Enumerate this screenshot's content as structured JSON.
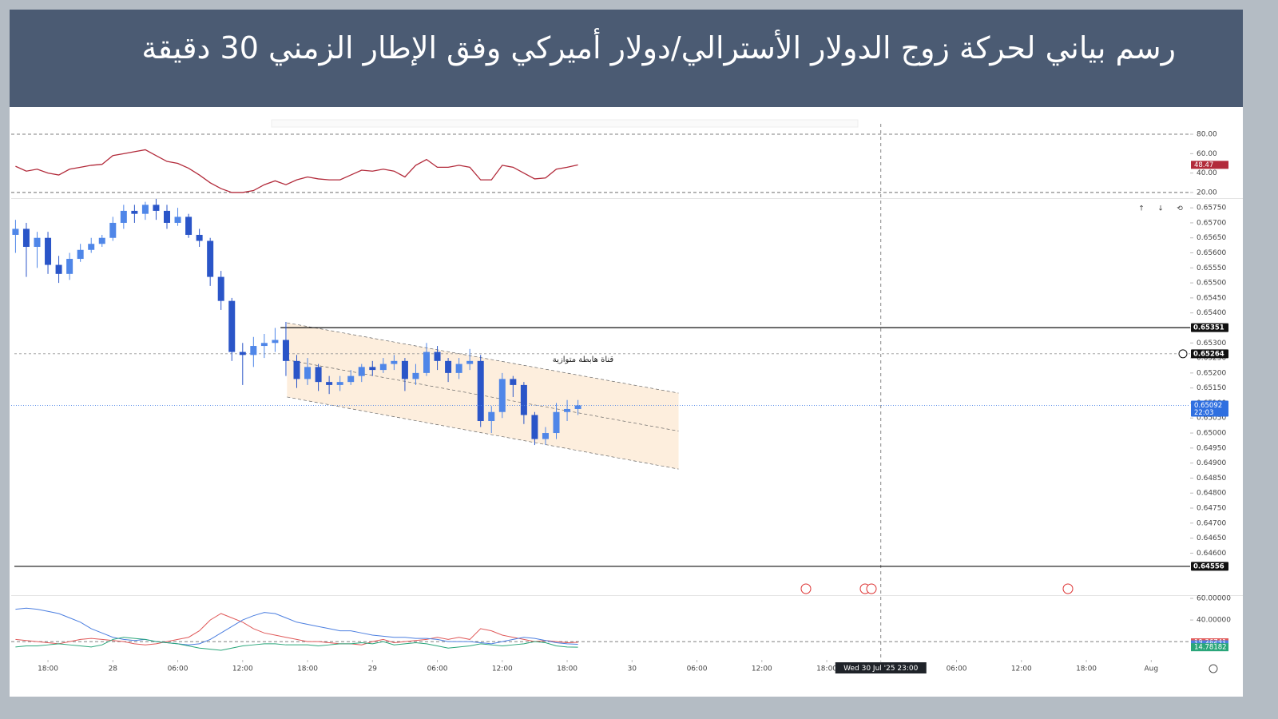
{
  "header": {
    "title": "رسم بياني لحركة زوج الدولار الأسترالي/دولار أميركي وفق الإطار الزمني 30 دقيقة"
  },
  "chart_data": [
    {
      "type": "candlestick",
      "x": [
        -3,
        -2,
        -1,
        0,
        1,
        2,
        3,
        4,
        5,
        6,
        7,
        8,
        9,
        10,
        11,
        12,
        13,
        14,
        15,
        16,
        17,
        18,
        19,
        20,
        21,
        22,
        23,
        24,
        25,
        26,
        27,
        28,
        29,
        30,
        31,
        32,
        33,
        34,
        35,
        36,
        37,
        38,
        39,
        40,
        41,
        42,
        43,
        44,
        45,
        46,
        47,
        48,
        49
      ],
      "open": [
        0.6566,
        0.6568,
        0.6562,
        0.6565,
        0.6556,
        0.6553,
        0.6558,
        0.6561,
        0.6563,
        0.6565,
        0.657,
        0.6574,
        0.6573,
        0.6576,
        0.6574,
        0.657,
        0.6572,
        0.6566,
        0.6564,
        0.6552,
        0.6544,
        0.6527,
        0.6526,
        0.6529,
        0.653,
        0.6531,
        0.6524,
        0.6518,
        0.6522,
        0.6517,
        0.6516,
        0.6517,
        0.6519,
        0.6522,
        0.6521,
        0.6523,
        0.6524,
        0.6518,
        0.652,
        0.6527,
        0.6524,
        0.652,
        0.6523,
        0.6524,
        0.6504,
        0.6507,
        0.6518,
        0.6516,
        0.6506,
        0.6498,
        0.65,
        0.6507,
        0.6508
      ],
      "high": [
        0.6571,
        0.657,
        0.6567,
        0.6567,
        0.6559,
        0.656,
        0.6563,
        0.6565,
        0.6566,
        0.6572,
        0.6576,
        0.6576,
        0.6577,
        0.6578,
        0.6576,
        0.6575,
        0.6573,
        0.6568,
        0.6565,
        0.6554,
        0.6545,
        0.653,
        0.6532,
        0.6533,
        0.6535,
        0.6537,
        0.6526,
        0.6525,
        0.6523,
        0.6519,
        0.6519,
        0.6521,
        0.6523,
        0.6524,
        0.6525,
        0.6526,
        0.6525,
        0.6523,
        0.653,
        0.6529,
        0.6525,
        0.6525,
        0.6528,
        0.6526,
        0.6509,
        0.652,
        0.6519,
        0.6517,
        0.6507,
        0.6502,
        0.651,
        0.6511,
        0.6511
      ],
      "low": [
        0.656,
        0.6552,
        0.6555,
        0.6553,
        0.655,
        0.6551,
        0.6557,
        0.656,
        0.6562,
        0.6564,
        0.6568,
        0.657,
        0.6571,
        0.6571,
        0.6568,
        0.6569,
        0.6565,
        0.6562,
        0.6549,
        0.6541,
        0.6524,
        0.6516,
        0.6522,
        0.6525,
        0.6527,
        0.6519,
        0.6515,
        0.6516,
        0.6514,
        0.6513,
        0.6514,
        0.6516,
        0.6517,
        0.6519,
        0.652,
        0.6521,
        0.6514,
        0.6516,
        0.6519,
        0.6521,
        0.6517,
        0.6518,
        0.6521,
        0.6502,
        0.65,
        0.6505,
        0.6512,
        0.6503,
        0.6496,
        0.6496,
        0.6498,
        0.6504,
        0.6506
      ],
      "close": [
        0.6568,
        0.6562,
        0.6565,
        0.6556,
        0.6553,
        0.6558,
        0.6561,
        0.6563,
        0.6565,
        0.657,
        0.6574,
        0.6573,
        0.6576,
        0.6574,
        0.657,
        0.6572,
        0.6566,
        0.6564,
        0.6552,
        0.6544,
        0.6527,
        0.6526,
        0.6529,
        0.653,
        0.6531,
        0.6524,
        0.6518,
        0.6522,
        0.6517,
        0.6516,
        0.6517,
        0.6519,
        0.6522,
        0.6521,
        0.6523,
        0.6524,
        0.6518,
        0.652,
        0.6527,
        0.6524,
        0.652,
        0.6523,
        0.6524,
        0.6504,
        0.6507,
        0.6518,
        0.6516,
        0.6506,
        0.6498,
        0.65,
        0.6507,
        0.6508,
        0.65092
      ],
      "up_color": "#4f86e8",
      "down_color": "#2a55c8",
      "countdown": "22:03",
      "xlim": [
        -3.4,
        105.3
      ],
      "xticks": [
        {
          "value": 0,
          "label": "18:00"
        },
        {
          "value": 6,
          "label": "28"
        },
        {
          "value": 12,
          "label": "06:00"
        },
        {
          "value": 18,
          "label": "12:00"
        },
        {
          "value": 24,
          "label": "18:00"
        },
        {
          "value": 30,
          "label": "29"
        },
        {
          "value": 36,
          "label": "06:00"
        },
        {
          "value": 42,
          "label": "12:00"
        },
        {
          "value": 48,
          "label": "18:00"
        },
        {
          "value": 54,
          "label": "30"
        },
        {
          "value": 60,
          "label": "06:00"
        },
        {
          "value": 66,
          "label": "12:00"
        },
        {
          "value": 72,
          "label": "18:00"
        },
        {
          "value": 84,
          "label": "06:00"
        },
        {
          "value": 90,
          "label": "12:00"
        },
        {
          "value": 96,
          "label": "18:00"
        },
        {
          "value": 102,
          "label": "Aug"
        }
      ],
      "crosshair": {
        "x": 77,
        "label": "Wed 30 Jul '25   23:00"
      },
      "ylim": [
        0.6446,
        0.65777
      ],
      "yticks": [
        {
          "value": 0.6575,
          "label": "0.65750"
        },
        {
          "value": 0.657,
          "label": "0.65700"
        },
        {
          "value": 0.6565,
          "label": "0.65650"
        },
        {
          "value": 0.656,
          "label": "0.65600"
        },
        {
          "value": 0.6555,
          "label": "0.65550"
        },
        {
          "value": 0.655,
          "label": "0.65500"
        },
        {
          "value": 0.6545,
          "label": "0.65450"
        },
        {
          "value": 0.654,
          "label": "0.65400"
        },
        {
          "value": 0.6535,
          "label": "0.65350"
        },
        {
          "value": 0.653,
          "label": "0.65300"
        },
        {
          "value": 0.6525,
          "label": "0.65250"
        },
        {
          "value": 0.652,
          "label": "0.65200"
        },
        {
          "value": 0.6515,
          "label": "0.65150"
        },
        {
          "value": 0.651,
          "label": "0.65100"
        },
        {
          "value": 0.6505,
          "label": "0.65050"
        },
        {
          "value": 0.65,
          "label": "0.65000"
        },
        {
          "value": 0.6495,
          "label": "0.64950"
        },
        {
          "value": 0.649,
          "label": "0.64900"
        },
        {
          "value": 0.6485,
          "label": "0.64850"
        },
        {
          "value": 0.648,
          "label": "0.64800"
        },
        {
          "value": 0.6475,
          "label": "0.64750"
        },
        {
          "value": 0.647,
          "label": "0.64700"
        },
        {
          "value": 0.6465,
          "label": "0.64650"
        },
        {
          "value": 0.646,
          "label": "0.64600"
        }
      ],
      "price_lines": [
        {
          "value": 0.65351,
          "style": "solid",
          "x_start": 21.5
        },
        {
          "value": 0.65264,
          "style": "dashed"
        },
        {
          "value": 0.64556,
          "style": "solid"
        }
      ],
      "channel": {
        "label": "قناة هابطة متوازية",
        "x": [
          22.1,
          58.3
        ],
        "upper": [
          0.65367,
          0.65133
        ],
        "lower": [
          0.6512,
          0.6488
        ],
        "color": "#fbe3c6"
      }
    },
    {
      "type": "line",
      "color": "#b22a3a",
      "values": [
        47,
        42,
        44,
        40,
        38,
        44,
        46,
        48,
        49,
        58,
        60,
        62,
        64,
        58,
        52,
        50,
        45,
        38,
        30,
        24,
        20,
        20,
        22,
        28,
        32,
        28,
        33,
        36,
        34,
        33,
        33,
        38,
        43,
        42,
        44,
        42,
        36,
        48,
        54,
        46,
        46,
        48,
        46,
        33,
        33,
        48,
        46,
        40,
        34,
        35,
        44,
        46,
        48.47
      ],
      "ylim": [
        14.2,
        86.6
      ],
      "yticks": [
        {
          "value": 80,
          "label": "80.00"
        },
        {
          "value": 60,
          "label": "60.00"
        },
        {
          "value": 40,
          "label": "40.00"
        },
        {
          "value": 20,
          "label": "20.00"
        }
      ],
      "levels": [
        80,
        20
      ]
    },
    {
      "type": "line",
      "series": [
        {
          "color": "#e05a5a",
          "values": [
            22,
            21,
            20,
            19,
            18,
            20,
            22,
            23,
            22,
            21,
            20,
            18,
            17,
            18,
            20,
            22,
            24,
            30,
            40,
            46,
            42,
            38,
            32,
            28,
            26,
            24,
            22,
            20,
            20,
            19,
            18,
            18,
            17,
            20,
            22,
            19,
            20,
            21,
            22,
            24,
            22,
            24,
            22,
            32,
            30,
            26,
            24,
            22,
            20,
            21,
            20,
            19,
            19.36741
          ]
        },
        {
          "color": "#4c7fe0",
          "values": [
            50,
            51,
            50,
            48,
            46,
            42,
            38,
            32,
            28,
            24,
            22,
            21,
            22,
            20,
            19,
            18,
            17,
            18,
            22,
            28,
            34,
            40,
            44,
            47,
            46,
            42,
            38,
            36,
            34,
            32,
            30,
            30,
            28,
            26,
            25,
            24,
            24,
            23,
            23,
            22,
            20,
            20,
            20,
            19,
            18,
            20,
            22,
            24,
            23,
            21,
            19,
            18,
            17.48671
          ]
        },
        {
          "color": "#2aa67a",
          "values": [
            15,
            16,
            16,
            17,
            18,
            17,
            16,
            15,
            17,
            22,
            24,
            23,
            22,
            20,
            19,
            18,
            16,
            14,
            13,
            12,
            14,
            16,
            17,
            18,
            18,
            17,
            17,
            17,
            16,
            17,
            18,
            18,
            19,
            18,
            20,
            17,
            18,
            19,
            18,
            16,
            14,
            15,
            16,
            18,
            17,
            16,
            17,
            18,
            20,
            19,
            16,
            15,
            14.78182
          ]
        }
      ],
      "ylim": [
        9,
        63
      ],
      "yticks": [
        {
          "value": 60,
          "label": "60.00000"
        },
        {
          "value": 40,
          "label": "40.00000"
        }
      ],
      "levels": [
        20
      ]
    }
  ]
}
